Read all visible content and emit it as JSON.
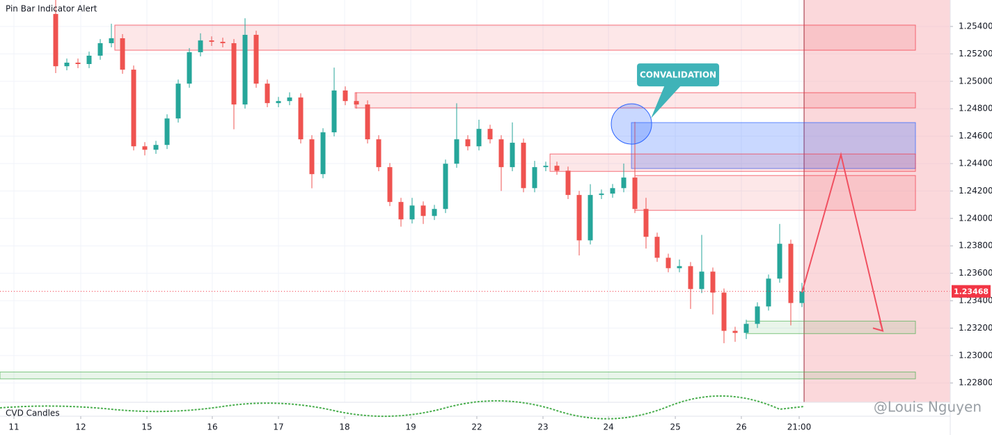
{
  "chart_data": {
    "type": "candlestick",
    "title": "Pin Bar Indicator Alert",
    "indicator_label": "CVD Candles",
    "watermark": "@Louis Nguyen",
    "x": [
      0,
      1,
      2,
      3,
      4,
      5,
      6,
      7,
      8,
      9,
      10,
      11,
      12,
      13,
      14,
      15,
      16,
      17,
      18,
      19,
      20,
      21,
      22,
      23,
      24,
      25,
      26,
      27,
      28,
      29,
      30,
      31,
      32,
      33,
      34,
      35,
      36,
      37,
      38,
      39,
      40,
      41,
      42,
      43,
      44,
      45,
      46,
      47,
      48,
      49,
      50,
      51,
      52,
      53,
      54,
      55,
      56,
      57,
      58,
      59,
      60,
      61,
      62,
      63,
      64,
      65,
      66,
      67
    ],
    "open": [
      1.25491,
      1.2511,
      1.25136,
      1.25126,
      1.25187,
      1.25278,
      1.25314,
      1.25085,
      1.24526,
      1.24501,
      1.24536,
      1.24729,
      1.24983,
      1.25212,
      1.25298,
      1.25288,
      1.25278,
      1.24831,
      1.25339,
      1.24983,
      1.24841,
      1.24856,
      1.24882,
      1.24577,
      1.24323,
      1.24628,
      1.24933,
      1.24856,
      1.24831,
      1.24577,
      1.24374,
      1.2412,
      1.23993,
      1.24094,
      1.24018,
      1.24069,
      1.24399,
      1.24577,
      1.24526,
      1.24653,
      1.24577,
      1.24374,
      1.24552,
      1.24221,
      1.24374,
      1.24384,
      1.24348,
      1.24171,
      1.2384,
      1.24171,
      1.24181,
      1.24221,
      1.24298,
      1.24069,
      1.23866,
      1.23713,
      1.23637,
      1.23652,
      1.23485,
      1.23612,
      1.23459,
      1.2318,
      1.23165,
      1.23231,
      1.23358,
      1.23561,
      1.23815,
      1.23383
    ],
    "high": [
      1.25593,
      1.25166,
      1.25166,
      1.25217,
      1.25308,
      1.2542,
      1.25344,
      1.25115,
      1.24556,
      1.24566,
      1.24759,
      1.25013,
      1.25242,
      1.2535,
      1.25328,
      1.25318,
      1.25308,
      1.2546,
      1.25369,
      1.25013,
      1.24886,
      1.2492,
      1.24912,
      1.24607,
      1.24658,
      1.251,
      1.24963,
      1.2492,
      1.24861,
      1.24607,
      1.24404,
      1.2415,
      1.2415,
      1.24124,
      1.24099,
      1.24429,
      1.2484,
      1.24607,
      1.2472,
      1.24683,
      1.24607,
      1.247,
      1.24582,
      1.2442,
      1.24414,
      1.24414,
      1.24378,
      1.24201,
      1.2425,
      1.24211,
      1.24251,
      1.244,
      1.24704,
      1.2415,
      1.23896,
      1.23743,
      1.237,
      1.23682,
      1.2388,
      1.23642,
      1.23489,
      1.2321,
      1.23261,
      1.23388,
      1.23591,
      1.2396,
      1.23845,
      1.2353
    ],
    "low": [
      1.2506,
      1.2508,
      1.25096,
      1.25096,
      1.25157,
      1.25248,
      1.25055,
      1.24496,
      1.2446,
      1.24471,
      1.24506,
      1.24699,
      1.24953,
      1.25182,
      1.25258,
      1.25248,
      1.2465,
      1.24801,
      1.24953,
      1.24811,
      1.24811,
      1.24826,
      1.24547,
      1.2422,
      1.24293,
      1.24598,
      1.24826,
      1.24801,
      1.24547,
      1.24344,
      1.2409,
      1.2394,
      1.23963,
      1.2396,
      1.23988,
      1.24039,
      1.24369,
      1.24496,
      1.24496,
      1.24547,
      1.242,
      1.24344,
      1.24191,
      1.24191,
      1.24344,
      1.24318,
      1.24141,
      1.2373,
      1.2381,
      1.24141,
      1.24151,
      1.24191,
      1.24039,
      1.2378,
      1.23683,
      1.23607,
      1.23607,
      1.2334,
      1.23455,
      1.233,
      1.2309,
      1.231,
      1.2312,
      1.23201,
      1.23328,
      1.23531,
      1.2322,
      1.23353
    ],
    "close": [
      1.2511,
      1.25136,
      1.25126,
      1.25187,
      1.25278,
      1.25314,
      1.25085,
      1.24526,
      1.24501,
      1.24536,
      1.24729,
      1.24983,
      1.25212,
      1.25298,
      1.25288,
      1.25278,
      1.24831,
      1.25339,
      1.24983,
      1.24841,
      1.24856,
      1.24882,
      1.24577,
      1.24323,
      1.24628,
      1.24933,
      1.24856,
      1.24831,
      1.24577,
      1.24374,
      1.2412,
      1.23993,
      1.24094,
      1.24018,
      1.24069,
      1.24399,
      1.24577,
      1.24526,
      1.24653,
      1.24577,
      1.24374,
      1.24552,
      1.24221,
      1.24374,
      1.24384,
      1.24348,
      1.24171,
      1.2384,
      1.24171,
      1.24181,
      1.24221,
      1.24298,
      1.24069,
      1.23866,
      1.23713,
      1.23637,
      1.23652,
      1.23485,
      1.23612,
      1.23459,
      1.2318,
      1.23165,
      1.23231,
      1.23358,
      1.23561,
      1.23815,
      1.23383,
      1.23468
    ],
    "up_color": "#26a69a",
    "down_color": "#ef5350",
    "xlim": [
      -5,
      80.3125
    ],
    "ylim": [
      1.22659,
      1.25593
    ],
    "xticks": [
      {
        "value": -3.75,
        "label": "11"
      },
      {
        "value": 2.25,
        "label": "12"
      },
      {
        "value": 8.19,
        "label": "15"
      },
      {
        "value": 14.06,
        "label": "16"
      },
      {
        "value": 20,
        "label": "17"
      },
      {
        "value": 25.94,
        "label": "18"
      },
      {
        "value": 31.88,
        "label": "19"
      },
      {
        "value": 37.81,
        "label": "22"
      },
      {
        "value": 43.75,
        "label": "23"
      },
      {
        "value": 49.63,
        "label": "24"
      },
      {
        "value": 55.63,
        "label": "25"
      },
      {
        "value": 61.56,
        "label": "26"
      },
      {
        "value": 66.75,
        "label": "21:00"
      }
    ],
    "yticks": [
      {
        "value": 1.228,
        "label": "1.22800"
      },
      {
        "value": 1.23,
        "label": "1.23000"
      },
      {
        "value": 1.232,
        "label": "1.23200"
      },
      {
        "value": 1.234,
        "label": "1.23400"
      },
      {
        "value": 1.236,
        "label": "1.23600"
      },
      {
        "value": 1.238,
        "label": "1.23800"
      },
      {
        "value": 1.24,
        "label": "1.24000"
      },
      {
        "value": 1.242,
        "label": "1.24200"
      },
      {
        "value": 1.244,
        "label": "1.24400"
      },
      {
        "value": 1.246,
        "label": "1.24600"
      },
      {
        "value": 1.248,
        "label": "1.24800"
      },
      {
        "value": 1.25,
        "label": "1.25000"
      },
      {
        "value": 1.252,
        "label": "1.25200"
      },
      {
        "value": 1.254,
        "label": "1.25400"
      }
    ],
    "last_price": 1.23468,
    "last_price_color": "#f23645",
    "zones": [
      {
        "x": [
          5.31,
          77.19
        ],
        "y": [
          1.2541,
          1.25227
        ],
        "color": "#f23645"
      },
      {
        "x": [
          26.88,
          77.19
        ],
        "y": [
          1.24917,
          1.24806
        ],
        "color": "#f23645"
      },
      {
        "x": [
          51.69,
          77.19
        ],
        "y": [
          1.24699,
          1.24364
        ],
        "color": "#2962ff"
      },
      {
        "x": [
          44.38,
          77.19
        ],
        "y": [
          1.2447,
          1.24343
        ],
        "color": "#f23645"
      },
      {
        "x": [
          52,
          77.19
        ],
        "y": [
          1.24313,
          1.24059
        ],
        "color": "#f23645"
      },
      {
        "x": [
          62,
          77.19
        ],
        "y": [
          1.23251,
          1.2316
        ],
        "color": "#4caf50"
      },
      {
        "x": [
          -5,
          77.19
        ],
        "y": [
          1.2288,
          1.2283
        ],
        "color": "#4caf50"
      }
    ],
    "future_zone": {
      "x": [
        67.19,
        80.3125
      ],
      "color": "#f7a8b0"
    },
    "projection": {
      "x": [
        67,
        70.5,
        74.25
      ],
      "y": [
        1.23459,
        1.24465,
        1.2318
      ],
      "color": "#f05060"
    },
    "annotation": {
      "text": "CONVALIDATION",
      "x": 51.69,
      "y": 1.24689,
      "color": "#3fb3b8"
    }
  }
}
